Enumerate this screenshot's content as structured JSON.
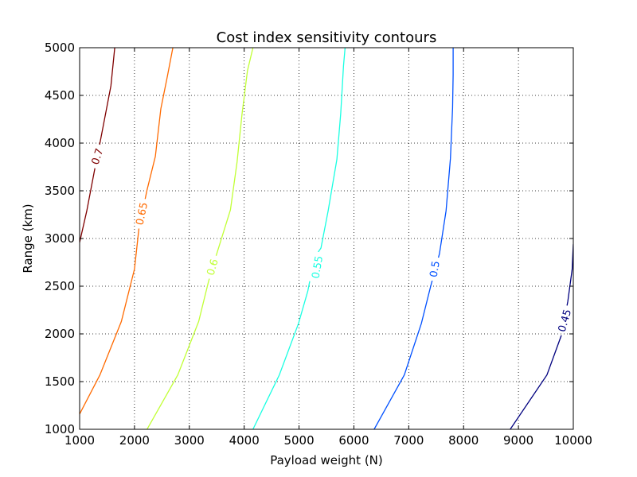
{
  "chart_data": {
    "type": "contour",
    "title": "Cost index sensitivity contours",
    "xlabel": "Payload weight (N)",
    "ylabel": "Range (km)",
    "xlim": [
      1000,
      10000
    ],
    "ylim": [
      1000,
      5000
    ],
    "xticks": [
      1000,
      2000,
      3000,
      4000,
      5000,
      6000,
      7000,
      8000,
      9000,
      10000
    ],
    "yticks": [
      1000,
      1500,
      2000,
      2500,
      3000,
      3500,
      4000,
      4500,
      5000
    ],
    "grid": true,
    "series": [
      {
        "name": "0.7",
        "color": "#7f0000",
        "points": [
          [
            1000,
            2960
          ],
          [
            1130,
            3290
          ],
          [
            1270,
            3710
          ],
          [
            1380,
            4030
          ],
          [
            1570,
            4600
          ],
          [
            1640,
            5000
          ]
        ],
        "label_at": [
          1320,
          3860
        ],
        "label_angle": -72
      },
      {
        "name": "0.65",
        "color": "#ff6a00",
        "points": [
          [
            1000,
            1160
          ],
          [
            1370,
            1570
          ],
          [
            1760,
            2130
          ],
          [
            2000,
            2680
          ],
          [
            2080,
            3100
          ],
          [
            2230,
            3510
          ],
          [
            2380,
            3860
          ],
          [
            2480,
            4360
          ],
          [
            2600,
            4700
          ],
          [
            2700,
            5000
          ]
        ],
        "label_at": [
          2130,
          3260
        ],
        "label_angle": -78
      },
      {
        "name": "0.6",
        "color": "#c1ff36",
        "points": [
          [
            2230,
            1000
          ],
          [
            2790,
            1570
          ],
          [
            3170,
            2130
          ],
          [
            3350,
            2550
          ],
          [
            3500,
            2840
          ],
          [
            3750,
            3300
          ],
          [
            3870,
            3800
          ],
          [
            3960,
            4300
          ],
          [
            4060,
            4760
          ],
          [
            4160,
            5000
          ]
        ],
        "label_at": [
          3420,
          2700
        ],
        "label_angle": -74
      },
      {
        "name": "0.55",
        "color": "#19ffe2",
        "points": [
          [
            4160,
            1000
          ],
          [
            4640,
            1570
          ],
          [
            4990,
            2110
          ],
          [
            5160,
            2450
          ],
          [
            5280,
            2800
          ],
          [
            5400,
            2900
          ],
          [
            5530,
            3290
          ],
          [
            5690,
            3830
          ],
          [
            5760,
            4310
          ],
          [
            5810,
            4810
          ],
          [
            5840,
            5000
          ]
        ],
        "label_at": [
          5330,
          2700
        ],
        "label_angle": -80
      },
      {
        "name": "0.5",
        "color": "#0050ff",
        "points": [
          [
            6370,
            1000
          ],
          [
            6920,
            1570
          ],
          [
            7230,
            2110
          ],
          [
            7400,
            2500
          ],
          [
            7560,
            2840
          ],
          [
            7680,
            3290
          ],
          [
            7760,
            3840
          ],
          [
            7800,
            4370
          ],
          [
            7810,
            4720
          ],
          [
            7810,
            5000
          ]
        ],
        "label_at": [
          7470,
          2680
        ],
        "label_angle": -80
      },
      {
        "name": "0.45",
        "color": "#00007f",
        "points": [
          [
            8850,
            1000
          ],
          [
            9520,
            1570
          ],
          [
            9780,
            1980
          ],
          [
            9900,
            2340
          ],
          [
            9980,
            2680
          ],
          [
            10000,
            2940
          ]
        ],
        "label_at": [
          9840,
          2140
        ],
        "label_angle": -74
      }
    ]
  }
}
